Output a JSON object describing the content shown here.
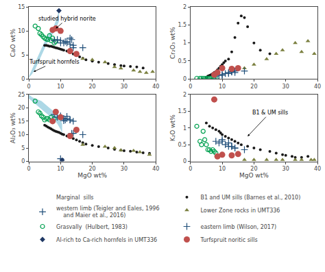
{
  "chart_data": [
    {
      "type": "scatter",
      "ylabel": "CaO wt%",
      "xlim": [
        0,
        40
      ],
      "ylim": [
        0,
        15
      ],
      "xticks": [
        0,
        10,
        20,
        30,
        40
      ],
      "yticks": [
        0,
        5,
        10,
        15
      ],
      "grid": false,
      "band": {
        "x": [
          0,
          1,
          2,
          3,
          4,
          5,
          6,
          7,
          8,
          9,
          9.5
        ],
        "lo": [
          0.3,
          1.0,
          2.0,
          3.5,
          5.0,
          6.5,
          7.8,
          8.8,
          9.8,
          11.2,
          12.0
        ],
        "hi": [
          0.5,
          2.0,
          3.5,
          5.0,
          6.5,
          7.8,
          9.0,
          10.2,
          11.2,
          13.0,
          14.5
        ],
        "color": "#ADD8E6"
      },
      "series": [
        {
          "name": "B1 and UM sills (Barnes et al., 2010)",
          "group": "Marginal  sills",
          "color": "#1A1A1A",
          "marker": "dot",
          "x": [
            5,
            5.5,
            6,
            6.5,
            7,
            7.5,
            8,
            8.5,
            9,
            9.5,
            10,
            10.5,
            11,
            12,
            13,
            14,
            15,
            16,
            17,
            18,
            20,
            22,
            25,
            27,
            29,
            30,
            32,
            34,
            36
          ],
          "y": [
            7.0,
            7.0,
            6.9,
            6.8,
            6.8,
            6.7,
            6.6,
            6.5,
            6.4,
            6.3,
            6.2,
            6.1,
            6.0,
            5.8,
            5.5,
            5.2,
            4.9,
            4.6,
            4.3,
            4.0,
            3.7,
            3.5,
            3.2,
            3.0,
            2.8,
            2.7,
            2.6,
            2.5,
            2.3
          ]
        },
        {
          "name": "Lower Zone rocks in UMT336",
          "color": "#7B8040",
          "marker": "triangle-up",
          "x": [
            17,
            20,
            24,
            27,
            29,
            33,
            35,
            37,
            39
          ],
          "y": [
            4.2,
            4.0,
            3.5,
            2.5,
            2.2,
            1.8,
            1.5,
            1.3,
            1.5
          ]
        },
        {
          "name": "Grasvally  (Hulbert, 1983)",
          "color": "#00A050",
          "marker": "circle-open",
          "x": [
            2,
            3,
            3.5,
            4,
            4.5,
            5,
            5.5,
            6,
            6.5,
            7,
            7.5,
            8,
            8.5
          ],
          "y": [
            11.0,
            10.5,
            9.5,
            9.2,
            8.8,
            8.5,
            8.3,
            8.2,
            9.0,
            8.0,
            8.5,
            7.5,
            7.8
          ]
        },
        {
          "name": "eastern limb (Wilson, 2017)",
          "color": "#1F4E79",
          "marker": "cross",
          "x": [
            8,
            9,
            10,
            11,
            11.5,
            12,
            13,
            14
          ],
          "y": [
            8.0,
            8.2,
            8.0,
            7.5,
            7.8,
            7.5,
            7.2,
            6.5
          ]
        },
        {
          "name": "western limb (Teigler and Eales, 1996\n    and Maier et al., 2016)",
          "group": "Marginal  sills",
          "color": "#1F4E79",
          "marker": "cross",
          "x": [
            10,
            12,
            13,
            13.5,
            14,
            17
          ],
          "y": [
            7.5,
            7.8,
            8.5,
            8.2,
            7.0,
            6.5
          ]
        },
        {
          "name": "Al-rich to Ca-rich hornfels in UMT336",
          "color": "#1F3864",
          "marker": "diamond",
          "x": [
            9.5
          ],
          "y": [
            14.2
          ]
        },
        {
          "name": "Turfspruit noritic sills",
          "color": "#C0504D",
          "marker": "circle",
          "x": [
            7.5,
            8.5,
            10,
            13,
            15
          ],
          "y": [
            10.2,
            10.5,
            10.0,
            5.8,
            5.2
          ]
        }
      ],
      "annotations": [
        {
          "text": "studied hybrid norite",
          "x": 8.5,
          "y": 10.5,
          "text_x": 12,
          "text_y": 12.5
        },
        {
          "text": "Turfspruit hornfels",
          "x": 1.5,
          "y": 1.5,
          "text_x": 8,
          "text_y": 3.5
        }
      ]
    },
    {
      "type": "scatter",
      "ylabel": "Cr₂O₃ wt%",
      "xlim": [
        0,
        40
      ],
      "ylim": [
        0,
        2
      ],
      "xticks": [
        0,
        10,
        20,
        30,
        40
      ],
      "yticks": [
        0,
        0.5,
        1,
        1.5,
        2
      ],
      "grid": false,
      "series": [
        {
          "name": "B1 and UM sills (Barnes et al., 2010)",
          "group": "Marginal  sills",
          "color": "#1A1A1A",
          "marker": "dot",
          "x": [
            5,
            5.5,
            6,
            6.5,
            7,
            7.5,
            8,
            8.5,
            9,
            9.5,
            10,
            10.5,
            11,
            12,
            13,
            14,
            15,
            16,
            17,
            18,
            20,
            22,
            25
          ],
          "y": [
            0.05,
            0.08,
            0.1,
            0.12,
            0.15,
            0.18,
            0.2,
            0.25,
            0.3,
            0.35,
            0.4,
            0.45,
            0.5,
            0.55,
            0.75,
            1.15,
            1.55,
            1.75,
            1.7,
            1.45,
            1.0,
            0.8,
            0.7
          ]
        },
        {
          "name": "Lower Zone rocks in UMT336",
          "color": "#7B8040",
          "marker": "triangle-up",
          "x": [
            17,
            20,
            24,
            27,
            29,
            33,
            35,
            37,
            39
          ],
          "y": [
            0.3,
            0.4,
            0.55,
            0.7,
            0.8,
            1.0,
            0.75,
            1.05,
            0.7
          ]
        },
        {
          "name": "Grasvally  (Hulbert, 1983)",
          "color": "#00A050",
          "marker": "circle-open",
          "x": [
            2,
            3,
            3.5,
            4,
            4.5,
            5,
            5.5,
            6,
            6.5,
            7,
            7.5,
            8
          ],
          "y": [
            0.02,
            0.02,
            0.02,
            0.02,
            0.02,
            0.02,
            0.02,
            0.02,
            0.02,
            0.02,
            0.02,
            0.02
          ]
        },
        {
          "name": "eastern limb (Wilson, 2017)",
          "color": "#1F4E79",
          "marker": "cross",
          "x": [
            8,
            9,
            10,
            11,
            12,
            13,
            14
          ],
          "y": [
            0.08,
            0.1,
            0.12,
            0.15,
            0.18,
            0.2,
            0.22
          ]
        },
        {
          "name": "western limb (Teigler and Eales, 1996\n    and Maier et al., 2016)",
          "group": "Marginal  sills",
          "color": "#1F4E79",
          "marker": "cross",
          "x": [
            10,
            12,
            13,
            14,
            17
          ],
          "y": [
            0.1,
            0.15,
            0.2,
            0.18,
            0.22
          ]
        },
        {
          "name": "Turfspruit noritic sills",
          "color": "#C0504D",
          "marker": "circle",
          "x": [
            7.5,
            8.5,
            10,
            13,
            15
          ],
          "y": [
            0.12,
            0.18,
            0.3,
            0.28,
            0.3
          ]
        }
      ]
    },
    {
      "type": "scatter",
      "xlabel": "MgO wt%",
      "ylabel": "Al₂O₃ wt%",
      "xlim": [
        0,
        40
      ],
      "ylim": [
        0,
        25
      ],
      "xticks": [
        0,
        10,
        20,
        30,
        40
      ],
      "yticks": [
        0,
        5,
        10,
        15,
        20,
        25
      ],
      "grid": false,
      "band": {
        "x": [
          0,
          1,
          2,
          3,
          4,
          5,
          6,
          7,
          8,
          9,
          10,
          10.5
        ],
        "lo": [
          23.5,
          22.5,
          21.5,
          20.5,
          19.5,
          18.5,
          17.5,
          16.5,
          15.5,
          14.0,
          12.0,
          10.5
        ],
        "hi": [
          25.0,
          24.0,
          23.5,
          23.0,
          22.5,
          21.5,
          20.5,
          19.5,
          18.5,
          17.0,
          15.5,
          14.0
        ],
        "color": "#ADD8E6"
      },
      "series": [
        {
          "name": "B1 and UM sills (Barnes et al., 2010)",
          "group": "Marginal  sills",
          "color": "#1A1A1A",
          "marker": "dot",
          "x": [
            5,
            5.5,
            6,
            6.5,
            7,
            7.5,
            8,
            8.5,
            9,
            9.5,
            10,
            10.5,
            11,
            12,
            13,
            14,
            15,
            16,
            17,
            18,
            20,
            22,
            25,
            27,
            29,
            30,
            32,
            34,
            36,
            38
          ],
          "y": [
            13.5,
            13.2,
            12.8,
            12.5,
            12.2,
            11.8,
            11.5,
            11.2,
            11.0,
            10.8,
            10.5,
            10.2,
            10.0,
            9.5,
            9.0,
            8.5,
            8.0,
            7.5,
            7.0,
            6.5,
            6.0,
            5.5,
            5.0,
            4.5,
            4.2,
            4.0,
            3.8,
            3.5,
            3.2,
            3.0
          ]
        },
        {
          "name": "Lower Zone rocks in UMT336",
          "color": "#7B8040",
          "marker": "triangle-up",
          "x": [
            17,
            24,
            27,
            29,
            33,
            35,
            38
          ],
          "y": [
            6.2,
            5.5,
            5.0,
            4.2,
            4.0,
            3.5,
            2.5
          ]
        },
        {
          "name": "Grasvally  (Hulbert, 1983)",
          "color": "#00A050",
          "marker": "circle-open",
          "x": [
            2,
            3,
            3.5,
            4,
            4.5,
            5,
            5.5,
            6,
            6.5,
            7,
            7.5,
            8
          ],
          "y": [
            22.5,
            18.5,
            18.0,
            17.0,
            16.5,
            15.5,
            16.0,
            16.0,
            15.5,
            16.5,
            15.0,
            16.0
          ]
        },
        {
          "name": "eastern limb (Wilson, 2017)",
          "color": "#1F4E79",
          "marker": "cross",
          "x": [
            8,
            9,
            10,
            11,
            11.5,
            12,
            13,
            14
          ],
          "y": [
            17.5,
            16.5,
            17.0,
            16.0,
            15.5,
            16.0,
            15.5,
            15.0
          ]
        },
        {
          "name": "western limb (Teigler and Eales, 1996\n    and Maier et al., 2016)",
          "group": "Marginal  sills",
          "color": "#1F4E79",
          "marker": "cross",
          "x": [
            10,
            11,
            12,
            13,
            13.5,
            14,
            17
          ],
          "y": [
            1.0,
            15.2,
            16.8,
            15.5,
            10.5,
            10.5,
            10.0
          ]
        },
        {
          "name": "Al-rich to Ca-rich hornfels in UMT336",
          "color": "#1F3864",
          "marker": "diamond",
          "x": [
            10.5
          ],
          "y": [
            0.5
          ]
        },
        {
          "name": "Turfspruit noritic sills",
          "color": "#C0504D",
          "marker": "circle",
          "x": [
            7.5,
            8.5,
            10,
            13,
            15
          ],
          "y": [
            15.0,
            18.5,
            16.5,
            9.5,
            11.8
          ]
        }
      ]
    },
    {
      "type": "scatter",
      "xlabel": "MgO wt%",
      "ylabel": "K₂O wt%",
      "xlim": [
        0,
        40
      ],
      "ylim": [
        0,
        2
      ],
      "xticks": [
        0,
        10,
        20,
        30,
        40
      ],
      "yticks": [
        0,
        0.5,
        1,
        1.5,
        2
      ],
      "grid": false,
      "series": [
        {
          "name": "B1 and UM sills (Barnes et al., 2010)",
          "group": "Marginal  sills",
          "color": "#1A1A1A",
          "marker": "dot",
          "x": [
            5,
            6,
            7,
            8,
            9,
            9.5,
            10,
            11,
            12,
            13,
            14,
            15,
            16,
            18,
            20,
            22,
            25,
            27,
            29,
            30,
            32,
            33,
            35,
            37
          ],
          "y": [
            1.15,
            1.05,
            1.0,
            0.95,
            0.9,
            0.85,
            0.8,
            0.75,
            0.7,
            0.65,
            0.6,
            0.55,
            0.5,
            0.45,
            0.4,
            0.35,
            0.3,
            0.25,
            0.2,
            0.18,
            0.15,
            0.12,
            0.12,
            0.15
          ]
        },
        {
          "name": "Lower Zone rocks in UMT336",
          "color": "#7B8040",
          "marker": "triangle-up",
          "x": [
            17,
            20,
            24,
            27,
            29,
            33,
            35,
            38,
            39
          ],
          "y": [
            0.05,
            0.05,
            0.05,
            0.05,
            0.05,
            0.05,
            0.05,
            0.05,
            0.05
          ]
        },
        {
          "name": "Grasvally  (Hulbert, 1983)",
          "color": "#00A050",
          "marker": "circle-open",
          "x": [
            2,
            3,
            3.5,
            4,
            4.5,
            5,
            5.5,
            6,
            6.5,
            7,
            7.5,
            8
          ],
          "y": [
            1.05,
            0.6,
            0.5,
            0.9,
            0.65,
            0.5,
            0.35,
            0.35,
            0.3,
            0.35,
            0.3,
            0.25
          ]
        },
        {
          "name": "eastern limb (Wilson, 2017)",
          "color": "#1F4E79",
          "marker": "cross",
          "x": [
            8,
            9,
            10,
            11,
            12,
            13,
            14
          ],
          "y": [
            0.6,
            0.55,
            0.6,
            0.5,
            0.45,
            0.45,
            0.4
          ]
        },
        {
          "name": "western limb (Teigler and Eales, 1996\n    and Maier et al., 2016)",
          "group": "Marginal  sills",
          "color": "#1F4E79",
          "marker": "cross",
          "x": [
            10,
            12,
            13,
            14,
            17
          ],
          "y": [
            0.65,
            0.55,
            0.45,
            0.4,
            0.35
          ]
        },
        {
          "name": "Turfspruit noritic sills",
          "color": "#C0504D",
          "marker": "circle",
          "x": [
            7.5,
            8.5,
            10,
            13,
            15
          ],
          "y": [
            1.85,
            0.15,
            0.2,
            0.18,
            0.22
          ]
        }
      ],
      "annotations": [
        {
          "text": "B1 & UM sills",
          "x": 18,
          "y": 0.75,
          "text_x": 25,
          "text_y": 1.45
        }
      ]
    }
  ]
}
